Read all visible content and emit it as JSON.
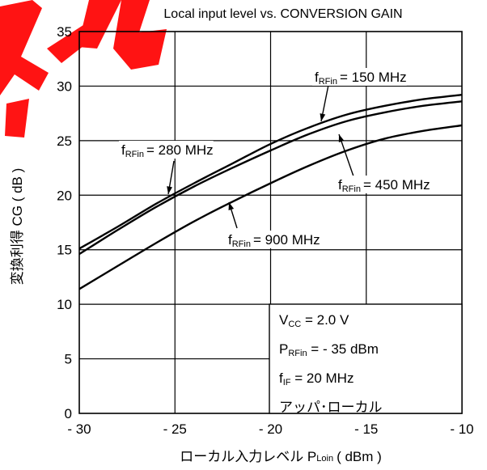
{
  "chart_data": {
    "type": "line",
    "title": "Local input level vs. CONVERSION GAIN",
    "xlabel": {
      "main": "ローカル入力レベル P",
      "sub": "Loin",
      "unit": "( dBm )"
    },
    "ylabel": "変換利得 CG ( dB )",
    "xlim": [
      -30,
      -10
    ],
    "ylim": [
      0,
      35
    ],
    "x_ticks": [
      -30,
      -25,
      -20,
      -15,
      -10
    ],
    "x_tick_labels": [
      "- 30",
      "- 25",
      "- 20",
      "- 15",
      "- 10"
    ],
    "y_ticks": [
      0,
      5,
      10,
      15,
      20,
      25,
      30,
      35
    ],
    "y_tick_labels": [
      "0",
      "5",
      "10",
      "15",
      "20",
      "25",
      "30",
      "35"
    ],
    "grid": true,
    "series": [
      {
        "name": "f RFin = 150 MHz",
        "x": [
          -30,
          -28,
          -26,
          -24,
          -22,
          -20,
          -18,
          -16,
          -14,
          -12,
          -10
        ],
        "values": [
          15.1,
          17.1,
          19.2,
          21.1,
          22.9,
          24.7,
          26.2,
          27.4,
          28.2,
          28.8,
          29.2
        ]
      },
      {
        "name": "f RFin = 280 MHz",
        "x": [
          -30,
          -28,
          -26,
          -24,
          -22,
          -20,
          -18,
          -16,
          -14,
          -12,
          -10
        ],
        "values": [
          14.6,
          16.8,
          18.9,
          20.8,
          22.5,
          24.1,
          25.6,
          26.8,
          27.6,
          28.2,
          28.6
        ]
      },
      {
        "name": "f RFin = 450 MHz",
        "x": [],
        "values": []
      },
      {
        "name": "f RFin = 900 MHz",
        "x": [
          -30,
          -28,
          -26,
          -24,
          -22,
          -20,
          -18,
          -16,
          -14,
          -12,
          -10
        ],
        "values": [
          11.4,
          13.5,
          15.6,
          17.6,
          19.4,
          21.1,
          22.7,
          24.1,
          25.2,
          25.9,
          26.4
        ]
      }
    ],
    "annotations": [
      {
        "f": "f",
        "sub": "RFin",
        "text": "= 150 MHz"
      },
      {
        "f": "f",
        "sub": "RFin",
        "text": "= 280 MHz"
      },
      {
        "f": "f",
        "sub": "RFin",
        "text": "= 450 MHz"
      },
      {
        "f": "f",
        "sub": "RFin",
        "text": "= 900 MHz"
      }
    ],
    "conditions": [
      {
        "main": "V",
        "sub": "CC",
        "rest": " = 2.0 V"
      },
      {
        "main": "P",
        "sub": "RFin",
        "rest": " =  - 35 dBm"
      },
      {
        "main": "f",
        "sub": "IF",
        "rest": " = 20 MHz"
      },
      {
        "main": "アッパ･ローカル",
        "sub": "",
        "rest": ""
      }
    ],
    "colors": {
      "line": "#000000",
      "grid": "#000000",
      "watermark": "#ff0000"
    }
  }
}
